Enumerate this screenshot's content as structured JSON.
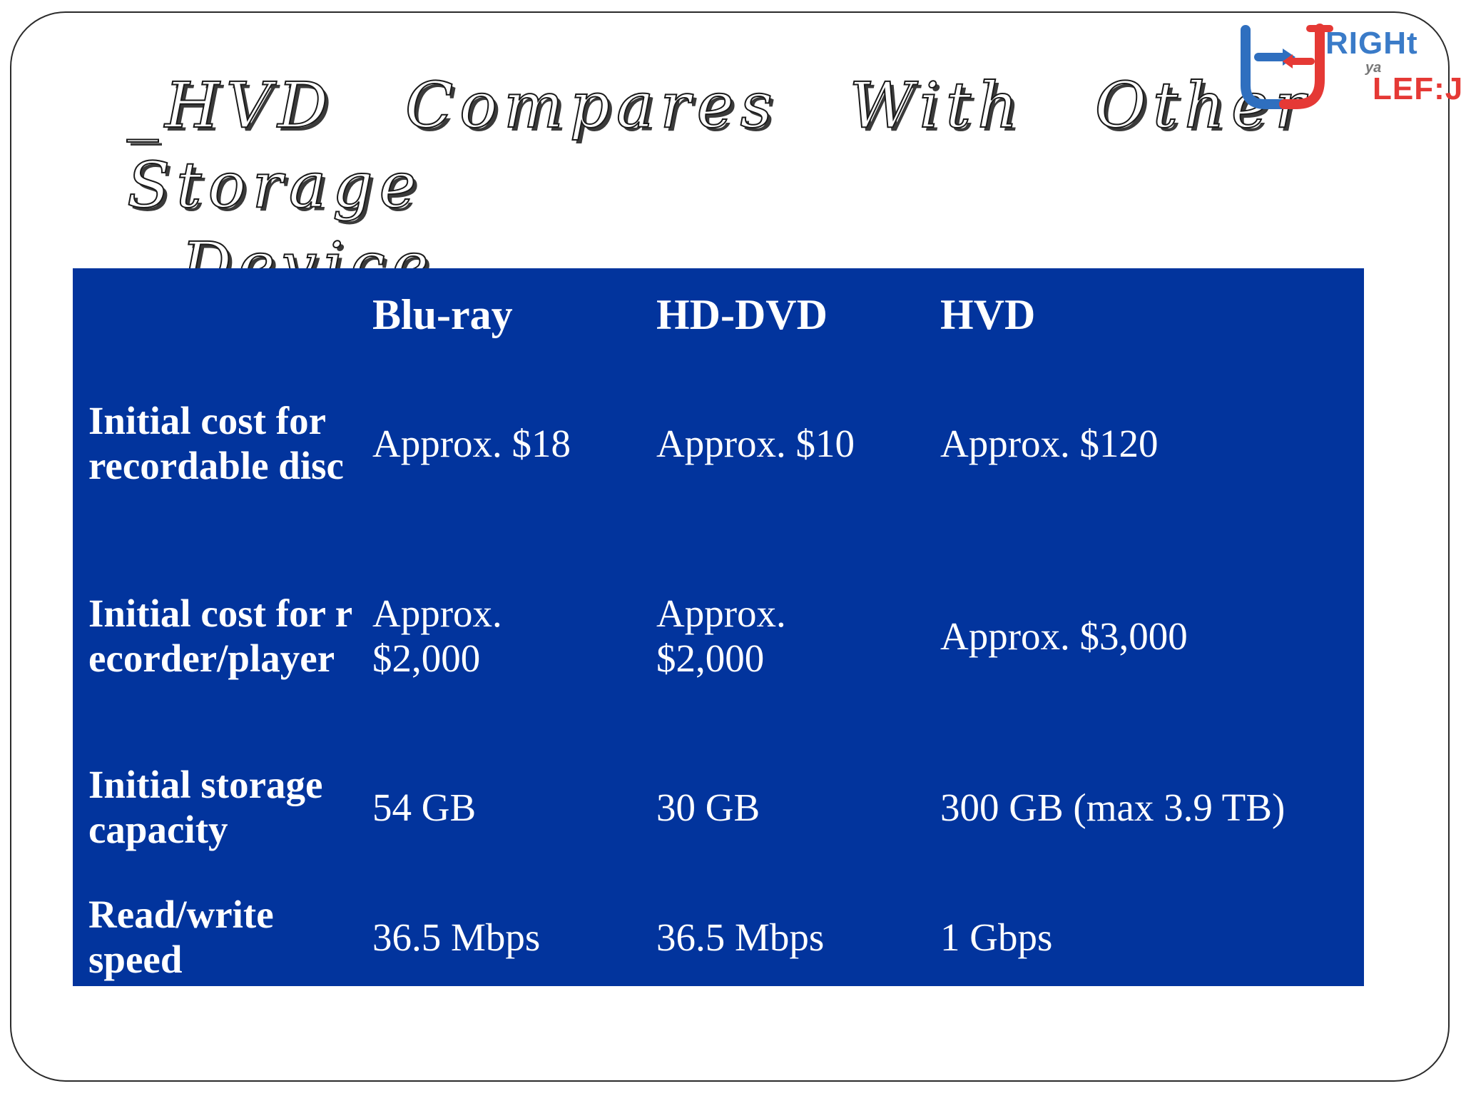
{
  "slide": {
    "title_line1": "_HVD Compares With Other Storage",
    "title_line2": "Device"
  },
  "logo": {
    "right": "RIGHt",
    "ya": "ya",
    "left": "LEF:J"
  },
  "table": {
    "headers": [
      "",
      "Blu-ray",
      "HD-DVD",
      "HVD"
    ],
    "rows": [
      {
        "label": "Initial cost for recordable disc",
        "values": [
          "Approx. $18",
          "Approx. $10",
          "Approx. $120"
        ]
      },
      {
        "label": "Initial cost for recorder/player",
        "values": [
          "Approx. $2,000",
          "Approx. $2,000",
          "Approx. $3,000"
        ]
      },
      {
        "label": "Initial storage capacity",
        "values": [
          "54 GB",
          "30 GB",
          "300 GB (max 3.9 TB)"
        ]
      },
      {
        "label": "Read/write speed",
        "values": [
          "36.5 Mbps",
          "36.5 Mbps",
          "1 Gbps"
        ]
      }
    ]
  },
  "colors": {
    "table_background": "#02349d",
    "table_text": "#ffffff",
    "logo_blue": "#3a7bc8",
    "logo_red": "#e53935"
  }
}
